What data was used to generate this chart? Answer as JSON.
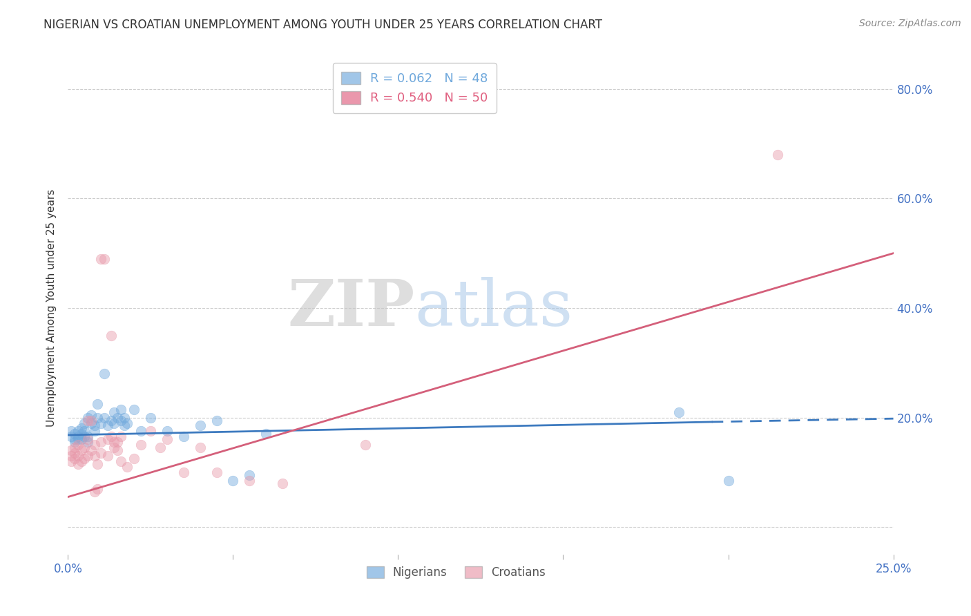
{
  "title": "NIGERIAN VS CROATIAN UNEMPLOYMENT AMONG YOUTH UNDER 25 YEARS CORRELATION CHART",
  "source": "Source: ZipAtlas.com",
  "ylabel": "Unemployment Among Youth under 25 years",
  "xlim": [
    0.0,
    0.25
  ],
  "ylim": [
    -0.05,
    0.85
  ],
  "xtick_positions": [
    0.0,
    0.05,
    0.1,
    0.15,
    0.2,
    0.25
  ],
  "xtick_labels": [
    "0.0%",
    "",
    "",
    "",
    "",
    "25.0%"
  ],
  "ytick_positions": [
    0.0,
    0.2,
    0.4,
    0.6,
    0.8
  ],
  "ytick_labels": [
    "",
    "20.0%",
    "40.0%",
    "60.0%",
    "80.0%"
  ],
  "legend_entries": [
    {
      "label": "R = 0.062   N = 48",
      "color": "#6fa8dc"
    },
    {
      "label": "R = 0.540   N = 50",
      "color": "#e06080"
    }
  ],
  "nigerian_scatter": [
    [
      0.001,
      0.165
    ],
    [
      0.001,
      0.175
    ],
    [
      0.002,
      0.16
    ],
    [
      0.002,
      0.17
    ],
    [
      0.002,
      0.155
    ],
    [
      0.003,
      0.165
    ],
    [
      0.003,
      0.175
    ],
    [
      0.003,
      0.16
    ],
    [
      0.004,
      0.17
    ],
    [
      0.004,
      0.18
    ],
    [
      0.004,
      0.16
    ],
    [
      0.005,
      0.165
    ],
    [
      0.005,
      0.175
    ],
    [
      0.005,
      0.19
    ],
    [
      0.006,
      0.165
    ],
    [
      0.006,
      0.2
    ],
    [
      0.006,
      0.155
    ],
    [
      0.007,
      0.205
    ],
    [
      0.007,
      0.19
    ],
    [
      0.008,
      0.175
    ],
    [
      0.008,
      0.185
    ],
    [
      0.009,
      0.225
    ],
    [
      0.009,
      0.2
    ],
    [
      0.01,
      0.19
    ],
    [
      0.011,
      0.2
    ],
    [
      0.011,
      0.28
    ],
    [
      0.012,
      0.185
    ],
    [
      0.013,
      0.195
    ],
    [
      0.014,
      0.21
    ],
    [
      0.014,
      0.19
    ],
    [
      0.015,
      0.2
    ],
    [
      0.016,
      0.215
    ],
    [
      0.016,
      0.195
    ],
    [
      0.017,
      0.185
    ],
    [
      0.017,
      0.2
    ],
    [
      0.018,
      0.19
    ],
    [
      0.02,
      0.215
    ],
    [
      0.022,
      0.175
    ],
    [
      0.025,
      0.2
    ],
    [
      0.03,
      0.175
    ],
    [
      0.035,
      0.165
    ],
    [
      0.04,
      0.185
    ],
    [
      0.045,
      0.195
    ],
    [
      0.05,
      0.085
    ],
    [
      0.055,
      0.095
    ],
    [
      0.06,
      0.17
    ],
    [
      0.185,
      0.21
    ],
    [
      0.2,
      0.085
    ]
  ],
  "croatian_scatter": [
    [
      0.001,
      0.12
    ],
    [
      0.001,
      0.13
    ],
    [
      0.001,
      0.14
    ],
    [
      0.002,
      0.125
    ],
    [
      0.002,
      0.135
    ],
    [
      0.002,
      0.145
    ],
    [
      0.003,
      0.115
    ],
    [
      0.003,
      0.13
    ],
    [
      0.003,
      0.15
    ],
    [
      0.004,
      0.12
    ],
    [
      0.004,
      0.14
    ],
    [
      0.005,
      0.125
    ],
    [
      0.005,
      0.145
    ],
    [
      0.006,
      0.13
    ],
    [
      0.006,
      0.16
    ],
    [
      0.006,
      0.195
    ],
    [
      0.007,
      0.195
    ],
    [
      0.007,
      0.14
    ],
    [
      0.008,
      0.15
    ],
    [
      0.008,
      0.13
    ],
    [
      0.008,
      0.065
    ],
    [
      0.009,
      0.115
    ],
    [
      0.009,
      0.07
    ],
    [
      0.01,
      0.135
    ],
    [
      0.01,
      0.155
    ],
    [
      0.01,
      0.49
    ],
    [
      0.011,
      0.49
    ],
    [
      0.012,
      0.16
    ],
    [
      0.012,
      0.13
    ],
    [
      0.013,
      0.35
    ],
    [
      0.013,
      0.165
    ],
    [
      0.014,
      0.155
    ],
    [
      0.014,
      0.145
    ],
    [
      0.015,
      0.14
    ],
    [
      0.015,
      0.155
    ],
    [
      0.016,
      0.165
    ],
    [
      0.016,
      0.12
    ],
    [
      0.018,
      0.11
    ],
    [
      0.02,
      0.125
    ],
    [
      0.022,
      0.15
    ],
    [
      0.025,
      0.175
    ],
    [
      0.028,
      0.145
    ],
    [
      0.03,
      0.16
    ],
    [
      0.035,
      0.1
    ],
    [
      0.04,
      0.145
    ],
    [
      0.045,
      0.1
    ],
    [
      0.055,
      0.085
    ],
    [
      0.065,
      0.08
    ],
    [
      0.09,
      0.15
    ],
    [
      0.215,
      0.68
    ]
  ],
  "nigerian_line_solid": {
    "x": [
      0.0,
      0.195
    ],
    "y": [
      0.168,
      0.192
    ]
  },
  "nigerian_line_dashed": {
    "x": [
      0.195,
      0.25
    ],
    "y": [
      0.192,
      0.198
    ]
  },
  "croatian_line": {
    "x": [
      0.0,
      0.25
    ],
    "y": [
      0.055,
      0.5
    ]
  },
  "nigerian_color": "#6fa8dc",
  "croatian_color": "#e899aa",
  "nigerian_line_color": "#3d7abf",
  "croatian_line_color": "#d45f7a",
  "scatter_size": 110,
  "scatter_alpha": 0.45,
  "watermark_zip": "ZIP",
  "watermark_atlas": "atlas",
  "background_color": "#ffffff",
  "grid_color": "#cccccc"
}
